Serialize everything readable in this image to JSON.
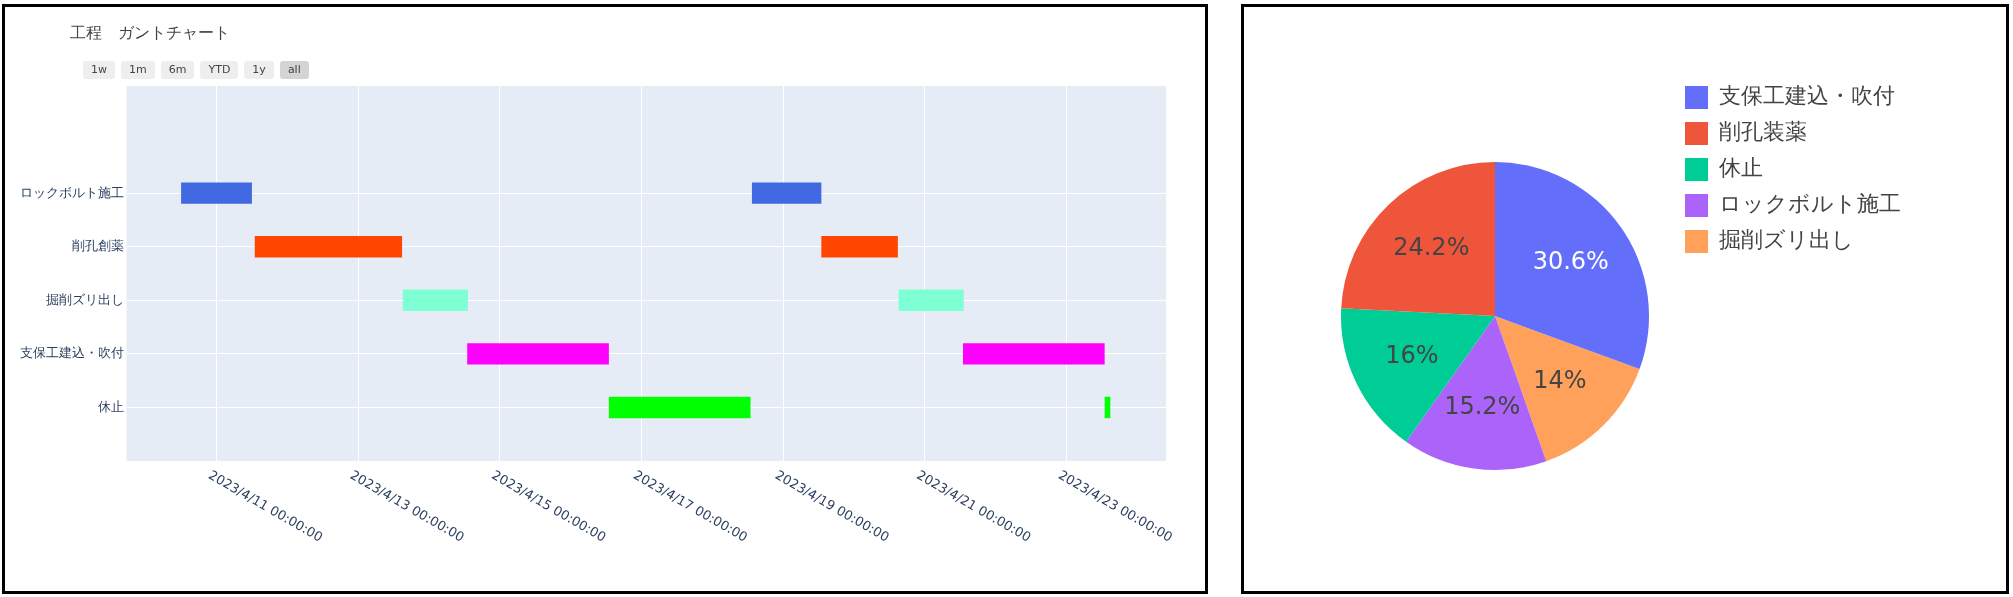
{
  "chart_data": [
    {
      "type": "bar",
      "orientation": "horizontal",
      "title": "工程　ガントチャート",
      "annotations": [
        "1w",
        "1m",
        "6m",
        "YTD",
        "1y",
        "all"
      ],
      "categories": [
        "ロックボルト施工",
        "削孔創薬",
        "掘削ズリ出し",
        "支保工建込・吹付",
        "休止"
      ],
      "series": [
        {
          "colors": [
            "#4169e1",
            "#ff4500",
            "#7fffd4",
            "#ff00ff",
            "#00ff00"
          ],
          "base": [
            19457.5,
            19458.54,
            19460.63,
            19461.54,
            19463.54
          ],
          "values": [
            1,
            2.08,
            0.92,
            2,
            2
          ]
        },
        {
          "colors": [
            "#4169e1",
            "#ff4500",
            "#7fffd4",
            "#ff00ff",
            "#00ff00"
          ],
          "base": [
            19465.56,
            19466.54,
            19467.63,
            19468.54,
            19470.54
          ],
          "values": [
            0.98,
            1.08,
            0.92,
            2,
            0.08
          ]
        }
      ],
      "xlim": [
        "2023-04-09T17:30",
        "2023-04-24T09:45"
      ],
      "xticks": [
        {
          "value": "2023-04-11",
          "label": "2023/4/11 00:00:00"
        },
        {
          "value": "2023-04-13",
          "label": "2023/4/13 00:00:00"
        },
        {
          "value": "2023-04-15",
          "label": "2023/4/15 00:00:00"
        },
        {
          "value": "2023-04-17",
          "label": "2023/4/17 00:00:00"
        },
        {
          "value": "2023-04-19",
          "label": "2023/4/19 00:00:00"
        },
        {
          "value": "2023-04-21",
          "label": "2023/4/21 00:00:00"
        },
        {
          "value": "2023-04-23",
          "label": "2023/4/23 00:00:00"
        }
      ],
      "grid": true,
      "legend": false
    },
    {
      "type": "pie",
      "categories": [
        "支保工建込・吹付",
        "削孔装薬",
        "休止",
        "ロックボルト施工",
        "掘削ズリ出し"
      ],
      "values": [
        30.6,
        24.2,
        16,
        15.2,
        14
      ],
      "colors": [
        "#636efa",
        "#ef553b",
        "#00cc96",
        "#ab63fa",
        "#ffa15a"
      ],
      "value_labels": [
        "30.6%",
        "24.2%",
        "16%",
        "15.2%",
        "14%"
      ],
      "legend": "top right"
    }
  ]
}
